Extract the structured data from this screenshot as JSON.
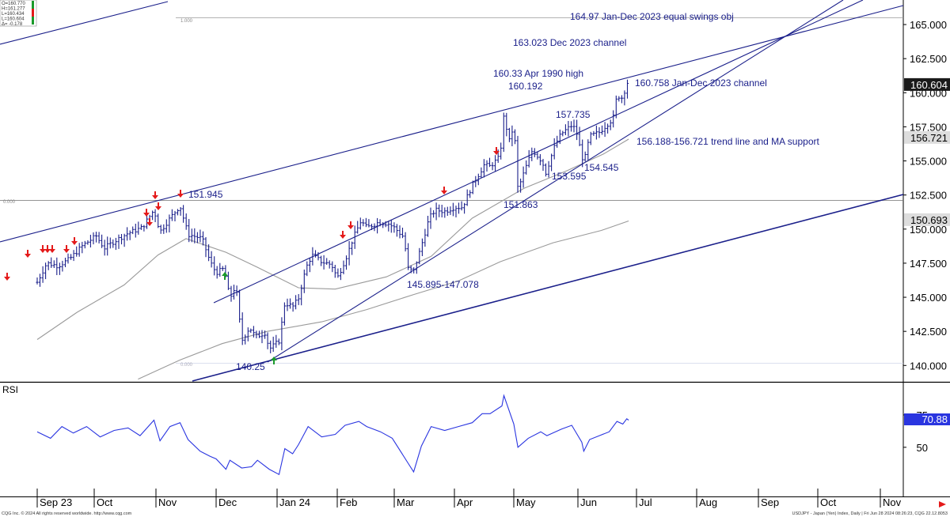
{
  "ohlc_box": [
    "O=160.770",
    "H=161.277",
    "L=160.434",
    "L=160.604",
    "Δ= -0.178"
  ],
  "colors": {
    "price_bar": "#1a1f8a",
    "trend_line": "#1a1f8a",
    "ma": "#9a9a9a",
    "rsi": "#2a35e0",
    "annotation": "#1a1f8a",
    "arrow_down": "#e41a1a",
    "arrow_up": "#1a9a2a",
    "price_flag_bg": "#1a1a1a",
    "rsi_flag_bg": "#2a35e0"
  },
  "footer": {
    "left": "CQG Inc. © 2024 All rights reserved worldwide. http://www.cqg.com",
    "right": "USDJPY - Japan (Yen) Index, Daily | Fri Jun 28 2024 08:26:23, CQG 22.12.8053"
  },
  "chart_data": [
    {
      "type": "candlestick",
      "title": "",
      "y_axis": {
        "ticks": [
          "165.000",
          "162.500",
          "160.000",
          "157.500",
          "155.000",
          "152.500",
          "150.000",
          "147.500",
          "145.000",
          "142.500",
          "140.000"
        ],
        "range": [
          138.8,
          166.8
        ]
      },
      "x_axis": {
        "labels": [
          "Sep 23",
          "Oct",
          "Nov",
          "Dec",
          "Jan 24",
          "Feb",
          "Mar",
          "Apr",
          "May",
          "Jun",
          "Jul",
          "Aug",
          "Sep",
          "Oct",
          "Nov"
        ]
      },
      "price_flags": [
        {
          "value": 160.604,
          "label": "160.604",
          "style": "dark"
        },
        {
          "value": 156.721,
          "label": "156.721",
          "style": "light"
        },
        {
          "value": 150.693,
          "label": "150.693",
          "style": "light"
        }
      ],
      "fib_labels": [
        "1.000",
        "0.000",
        "0.000"
      ],
      "annotations": [
        "164.97 Jan-Dec 2023 equal swings obj",
        "163.023 Dec 2023 channel",
        "160.33 Apr 1990 high",
        "160.192",
        "160.758 Jan-Dec 2023 channel",
        "157.735",
        "156.188-156.721 trend line and MA support",
        "153.595",
        "154.545",
        "151.863",
        "151.945",
        "145.895-147.078",
        "140.25"
      ],
      "key_points": [
        {
          "date": "Nov 13",
          "label": "151.945",
          "value": 151.945
        },
        {
          "date": "Jan 2",
          "label": "140.25",
          "value": 140.25
        },
        {
          "date": "Mar 11",
          "label": "145.895-147.078",
          "value": 146.5
        },
        {
          "date": "Apr 29",
          "label": "160.192",
          "value": 160.192
        },
        {
          "date": "May 3",
          "label": "151.863",
          "value": 151.863
        },
        {
          "date": "May 16",
          "label": "153.595",
          "value": 153.595
        },
        {
          "date": "May 29",
          "label": "157.735",
          "value": 157.735
        },
        {
          "date": "Jun 4",
          "label": "154.545",
          "value": 154.545
        },
        {
          "date": "Jun 27",
          "label": "160.604",
          "value": 160.604
        }
      ],
      "price_series": [
        [
          "Sep 1",
          146.1
        ],
        [
          "Sep 6",
          147.5
        ],
        [
          "Sep 12",
          147.3
        ],
        [
          "Sep 18",
          147.8
        ],
        [
          "Sep 25",
          148.8
        ],
        [
          "Oct 2",
          149.5
        ],
        [
          "Oct 6",
          148.6
        ],
        [
          "Oct 11",
          149.1
        ],
        [
          "Oct 18",
          149.7
        ],
        [
          "Oct 25",
          150.1
        ],
        [
          "Oct 31",
          151.4
        ],
        [
          "Nov 3",
          149.8
        ],
        [
          "Nov 8",
          150.8
        ],
        [
          "Nov 13",
          151.7
        ],
        [
          "Nov 17",
          149.6
        ],
        [
          "Nov 22",
          149.4
        ],
        [
          "Nov 24",
          149.3
        ],
        [
          "Nov 28",
          147.6
        ],
        [
          "Dec 1",
          146.8
        ],
        [
          "Dec 5",
          147.1
        ],
        [
          "Dec 8",
          144.9
        ],
        [
          "Dec 11",
          145.9
        ],
        [
          "Dec 14",
          141.8
        ],
        [
          "Dec 18",
          142.8
        ],
        [
          "Dec 21",
          142.1
        ],
        [
          "Dec 26",
          142.4
        ],
        [
          "Dec 28",
          141.2
        ],
        [
          "Jan 2",
          141.8
        ],
        [
          "Jan 5",
          144.6
        ],
        [
          "Jan 9",
          144.3
        ],
        [
          "Jan 12",
          144.9
        ],
        [
          "Jan 16",
          147.2
        ],
        [
          "Jan 19",
          148.1
        ],
        [
          "Jan 24",
          147.6
        ],
        [
          "Jan 29",
          147.4
        ],
        [
          "Feb 1",
          146.4
        ],
        [
          "Feb 6",
          148.1
        ],
        [
          "Feb 9",
          149.3
        ],
        [
          "Feb 13",
          150.6
        ],
        [
          "Feb 16",
          150.1
        ],
        [
          "Feb 22",
          150.5
        ],
        [
          "Feb 27",
          150.4
        ],
        [
          "Mar 1",
          150.1
        ],
        [
          "Mar 6",
          149.4
        ],
        [
          "Mar 8",
          147.1
        ],
        [
          "Mar 11",
          146.9
        ],
        [
          "Mar 14",
          148.3
        ],
        [
          "Mar 19",
          150.8
        ],
        [
          "Mar 22",
          151.4
        ],
        [
          "Mar 27",
          151.3
        ],
        [
          "Apr 1",
          151.6
        ],
        [
          "Apr 5",
          151.6
        ],
        [
          "Apr 10",
          153.2
        ],
        [
          "Apr 16",
          154.7
        ],
        [
          "Apr 19",
          154.6
        ],
        [
          "Apr 24",
          155.3
        ],
        [
          "Apr 26",
          158.3
        ],
        [
          "Apr 29",
          156.3
        ],
        [
          "May 1",
          157.8
        ],
        [
          "May 3",
          152.9
        ],
        [
          "May 7",
          154.6
        ],
        [
          "May 10",
          155.8
        ],
        [
          "May 15",
          154.9
        ],
        [
          "May 16",
          153.9
        ],
        [
          "May 21",
          156.2
        ],
        [
          "May 24",
          157.0
        ],
        [
          "May 29",
          157.6
        ],
        [
          "May 31",
          157.3
        ],
        [
          "Jun 4",
          154.8
        ],
        [
          "Jun 7",
          156.8
        ],
        [
          "Jun 12",
          157.1
        ],
        [
          "Jun 14",
          157.4
        ],
        [
          "Jun 19",
          158.1
        ],
        [
          "Jun 21",
          159.8
        ],
        [
          "Jun 24",
          159.6
        ],
        [
          "Jun 26",
          160.8
        ],
        [
          "Jun 27",
          160.6
        ]
      ],
      "moving_averages": [
        {
          "points": [
            [
              "Sep 1",
              141.9
            ],
            [
              "Sep 22",
              143.9
            ],
            [
              "Oct 16",
              145.9
            ],
            [
              "Nov 2",
              148.1
            ],
            [
              "Nov 16",
              149.3
            ],
            [
              "Dec 6",
              148.3
            ],
            [
              "Dec 22",
              147.2
            ],
            [
              "Jan 12",
              145.7
            ],
            [
              "Jan 31",
              145.6
            ],
            [
              "Feb 26",
              146.5
            ],
            [
              "Mar 20",
              148.0
            ],
            [
              "Apr 10",
              150.8
            ],
            [
              "May 6",
              153.0
            ],
            [
              "May 27",
              154.3
            ],
            [
              "Jun 14",
              155.5
            ],
            [
              "Jun 27",
              156.6
            ]
          ]
        },
        {
          "points": [
            [
              "Oct 23",
              139.0
            ],
            [
              "Nov 13",
              140.4
            ],
            [
              "Dec 4",
              141.6
            ],
            [
              "Dec 27",
              142.5
            ],
            [
              "Jan 24",
              143.2
            ],
            [
              "Feb 16",
              144.1
            ],
            [
              "Mar 11",
              145.2
            ],
            [
              "Apr 3",
              146.2
            ],
            [
              "Apr 24",
              147.6
            ],
            [
              "May 20",
              149.0
            ],
            [
              "Jun 13",
              149.9
            ],
            [
              "Jun 27",
              150.6
            ]
          ]
        }
      ]
    },
    {
      "type": "line",
      "title": "RSI",
      "y_axis": {
        "ticks": [
          "75",
          "50"
        ]
      },
      "last_value_label": "70.88",
      "series": [
        [
          "Sep 1",
          62
        ],
        [
          "Sep 8",
          57
        ],
        [
          "Sep 14",
          66
        ],
        [
          "Sep 20",
          61
        ],
        [
          "Sep 27",
          66
        ],
        [
          "Oct 4",
          58
        ],
        [
          "Oct 11",
          63
        ],
        [
          "Oct 18",
          65
        ],
        [
          "Oct 24",
          59
        ],
        [
          "Oct 31",
          71
        ],
        [
          "Nov 3",
          55
        ],
        [
          "Nov 8",
          66
        ],
        [
          "Nov 13",
          69
        ],
        [
          "Nov 17",
          56
        ],
        [
          "Nov 23",
          47
        ],
        [
          "Nov 28",
          43
        ],
        [
          "Dec 1",
          41
        ],
        [
          "Dec 6",
          33
        ],
        [
          "Dec 8",
          40
        ],
        [
          "Dec 14",
          34
        ],
        [
          "Dec 19",
          35
        ],
        [
          "Dec 22",
          40
        ],
        [
          "Dec 28",
          33
        ],
        [
          "Jan 2",
          29
        ],
        [
          "Jan 5",
          49
        ],
        [
          "Jan 9",
          45
        ],
        [
          "Jan 12",
          52
        ],
        [
          "Jan 17",
          66
        ],
        [
          "Jan 24",
          58
        ],
        [
          "Jan 31",
          60
        ],
        [
          "Feb 5",
          67
        ],
        [
          "Feb 12",
          70
        ],
        [
          "Feb 16",
          66
        ],
        [
          "Feb 23",
          62
        ],
        [
          "Feb 29",
          57
        ],
        [
          "Mar 8",
          38
        ],
        [
          "Mar 11",
          31
        ],
        [
          "Mar 15",
          51
        ],
        [
          "Mar 20",
          66
        ],
        [
          "Mar 27",
          63
        ],
        [
          "Apr 3",
          66
        ],
        [
          "Apr 10",
          69
        ],
        [
          "Apr 15",
          76
        ],
        [
          "Apr 19",
          76
        ],
        [
          "Apr 25",
          82
        ],
        [
          "Apr 26",
          90
        ],
        [
          "May 1",
          68
        ],
        [
          "May 3",
          50
        ],
        [
          "May 8",
          57
        ],
        [
          "May 14",
          62
        ],
        [
          "May 17",
          59
        ],
        [
          "May 24",
          64
        ],
        [
          "May 29",
          67
        ],
        [
          "Jun 3",
          54
        ],
        [
          "Jun 4",
          47
        ],
        [
          "Jun 7",
          56
        ],
        [
          "Jun 12",
          59
        ],
        [
          "Jun 17",
          62
        ],
        [
          "Jun 21",
          70
        ],
        [
          "Jun 24",
          68
        ],
        [
          "Jun 26",
          72
        ],
        [
          "Jun 27",
          71
        ]
      ]
    }
  ]
}
